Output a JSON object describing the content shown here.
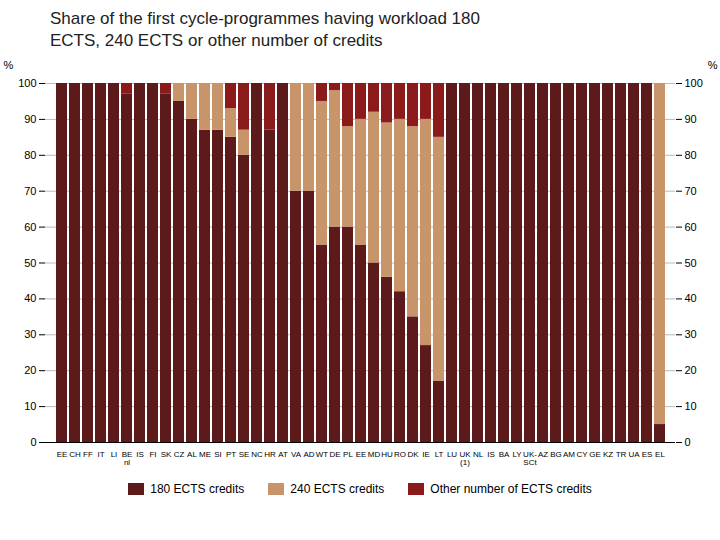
{
  "chart_data": {
    "type": "bar",
    "stacked": true,
    "title": "Share of the first cycle-programmes having workload 180\nECTS, 240 ECTS or other number of credits",
    "ylabel": "%",
    "y2label": "%",
    "categories": [
      "EE",
      "CH",
      "FF",
      "IT",
      "LI",
      "BE\nnl",
      "IS",
      "FI",
      "SK",
      "CZ",
      "AL",
      "ME",
      "SI",
      "PT",
      "SE",
      "NC",
      "HR",
      "AT",
      "VA",
      "AD",
      "WT",
      "DE",
      "PL",
      "EE",
      "MD",
      "HU",
      "RO",
      "DK",
      "IE",
      "LT",
      "LU",
      "UK\n(1)",
      "NL",
      "IS",
      "BA",
      "LY",
      "UK-\nSCt",
      "AZ",
      "BG",
      "AM",
      "CY",
      "GE",
      "KZ",
      "TR",
      "UA",
      "ES",
      "EL"
    ],
    "series": [
      {
        "name": "180 ECTS credits",
        "color": "#5C1A1A",
        "values": [
          100,
          100,
          100,
          100,
          100,
          97,
          100,
          100,
          97,
          95,
          90,
          87,
          87,
          85,
          80,
          100,
          87,
          100,
          70,
          70,
          55,
          60,
          60,
          55,
          50,
          46,
          42,
          35,
          27,
          17,
          100,
          100,
          100,
          100,
          100,
          100,
          100,
          100,
          100,
          100,
          100,
          100,
          100,
          100,
          100,
          100,
          5
        ]
      },
      {
        "name": "240 ECTS credits",
        "color": "#C8956A",
        "values": [
          0,
          0,
          0,
          0,
          0,
          0,
          0,
          0,
          0,
          5,
          10,
          13,
          13,
          8,
          7,
          0,
          0,
          0,
          30,
          30,
          40,
          38,
          28,
          35,
          42,
          43,
          48,
          53,
          63,
          68,
          0,
          0,
          0,
          0,
          0,
          0,
          0,
          0,
          0,
          0,
          0,
          0,
          0,
          0,
          0,
          0,
          95
        ]
      },
      {
        "name": "Other number of ECTS credits",
        "color": "#8B1A1A",
        "values": [
          0,
          0,
          0,
          0,
          0,
          3,
          0,
          0,
          3,
          0,
          0,
          0,
          0,
          7,
          13,
          0,
          13,
          0,
          0,
          0,
          5,
          2,
          12,
          10,
          8,
          11,
          10,
          12,
          10,
          15,
          0,
          0,
          0,
          0,
          0,
          0,
          0,
          0,
          0,
          0,
          0,
          0,
          0,
          0,
          0,
          0,
          0
        ]
      }
    ],
    "ylim": [
      0,
      100
    ],
    "yticks": [
      0,
      10,
      20,
      30,
      40,
      50,
      60,
      70,
      80,
      90,
      100
    ],
    "y2lim": [
      0,
      100
    ],
    "y2ticks": [
      0,
      10,
      20,
      30,
      40,
      50,
      60,
      70,
      80,
      90,
      100
    ],
    "grid": true,
    "legend": "bottom"
  }
}
